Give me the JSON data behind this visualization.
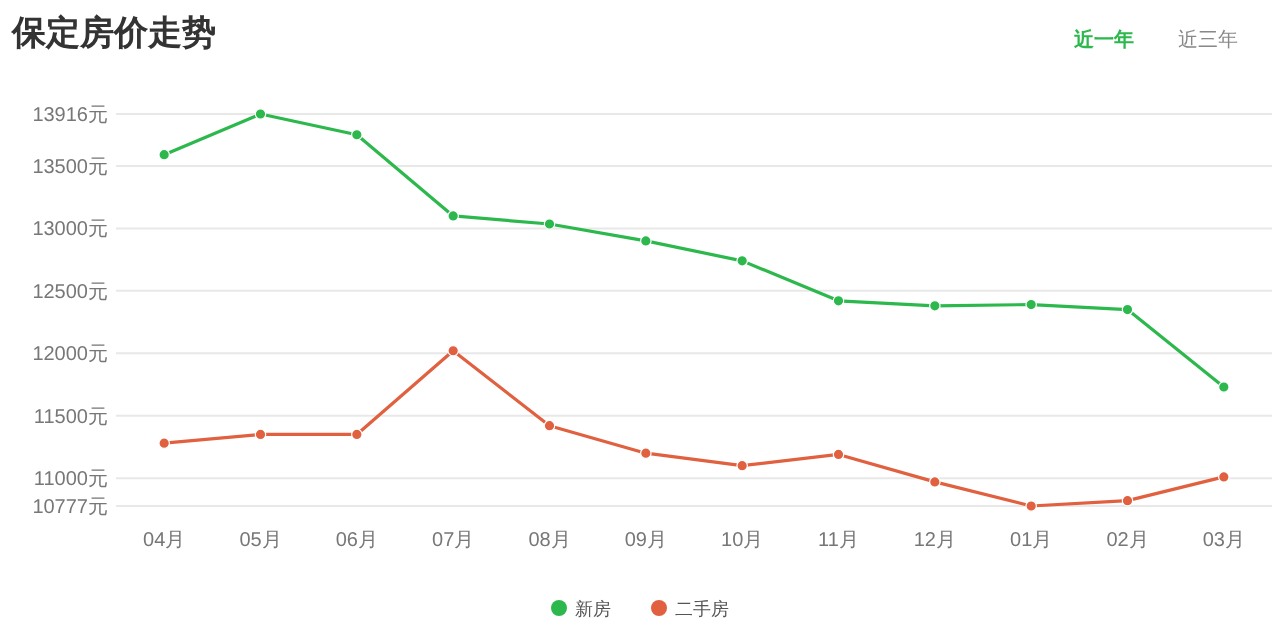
{
  "chart_data": {
    "type": "line",
    "title": "保定房价走势",
    "annotations": [
      "近一年",
      "近三年"
    ],
    "categories": [
      "04月",
      "05月",
      "06月",
      "07月",
      "08月",
      "09月",
      "10月",
      "11月",
      "12月",
      "01月",
      "02月",
      "03月"
    ],
    "series": [
      {
        "name": "新房",
        "color": "#2db84d",
        "values": [
          13590,
          13916,
          13750,
          13100,
          13035,
          12900,
          12740,
          12420,
          12380,
          12390,
          12350,
          11730
        ]
      },
      {
        "name": "二手房",
        "color": "#e0603f",
        "values": [
          11280,
          11350,
          11350,
          12020,
          11420,
          11200,
          11100,
          11190,
          10970,
          10777,
          10820,
          11010
        ]
      }
    ],
    "ylim": [
      10777,
      13916
    ],
    "yticks": [
      {
        "value": 10777,
        "label": "10777元"
      },
      {
        "value": 11000,
        "label": "11000元"
      },
      {
        "value": 11500,
        "label": "11500元"
      },
      {
        "value": 12000,
        "label": "12000元"
      },
      {
        "value": 12500,
        "label": "12500元"
      },
      {
        "value": 13000,
        "label": "13000元"
      },
      {
        "value": 13500,
        "label": "13500元"
      },
      {
        "value": 13916,
        "label": "13916元"
      }
    ],
    "grid": "y",
    "legend": "bottom",
    "marker": "circle",
    "line_style": "solid"
  }
}
